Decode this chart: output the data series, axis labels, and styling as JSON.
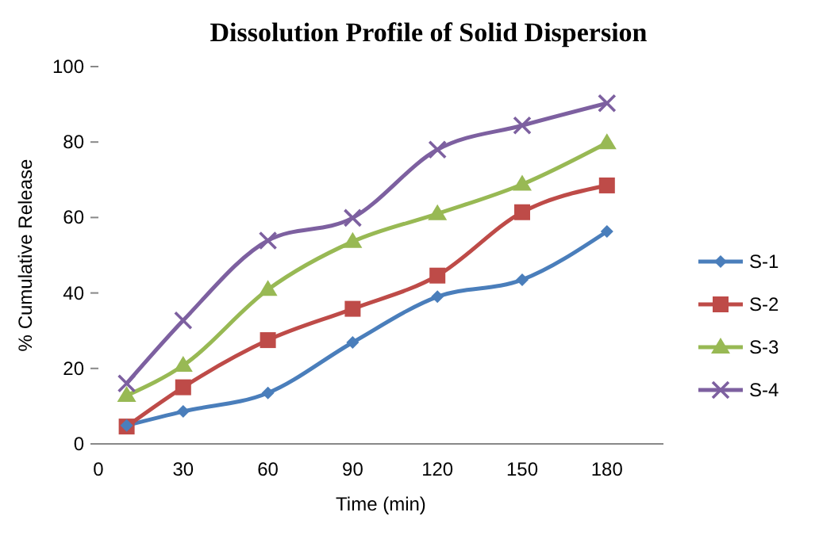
{
  "chart_data": {
    "type": "line",
    "title": "Dissolution Profile of Solid Dispersion",
    "xlabel": "Time (min)",
    "ylabel": "% Cumulative Release",
    "x": [
      10,
      30,
      60,
      90,
      120,
      150,
      180
    ],
    "xlim": [
      0,
      200
    ],
    "xticks": [
      0,
      30,
      60,
      90,
      120,
      150,
      180
    ],
    "ylim": [
      0,
      100
    ],
    "yticks": [
      0,
      20,
      40,
      60,
      80,
      100
    ],
    "grid": false,
    "legend": "right",
    "series": [
      {
        "name": "S-1",
        "color": "#4a7ebb",
        "marker": "diamond",
        "values": [
          4.9,
          8.6,
          13.5,
          26.9,
          39,
          43.5,
          56.3
        ]
      },
      {
        "name": "S-2",
        "color": "#be4b48",
        "marker": "square",
        "values": [
          4.6,
          15,
          27.5,
          35.8,
          44.6,
          61.4,
          68.5
        ]
      },
      {
        "name": "S-3",
        "color": "#98b954",
        "marker": "triangle",
        "values": [
          12.8,
          20.8,
          40.9,
          53.6,
          61,
          68.8,
          79.8
        ]
      },
      {
        "name": "S-4",
        "color": "#7d60a0",
        "marker": "cross",
        "values": [
          16,
          32.7,
          53.9,
          59.9,
          78,
          84.4,
          90.3
        ]
      }
    ]
  }
}
